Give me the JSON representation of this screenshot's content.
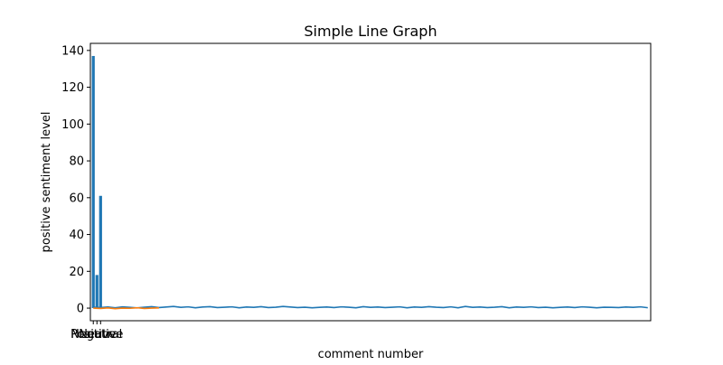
{
  "chart_data": {
    "type": "line",
    "title": "Simple Line Graph",
    "xlabel": "comment number",
    "ylabel": "positive sentiment level",
    "ylim": [
      -6.85,
      143.85
    ],
    "yticks": [
      0,
      20,
      40,
      60,
      80,
      100,
      120,
      140
    ],
    "xticks": [
      {
        "x": 0,
        "label": "Positive"
      },
      {
        "x": 1,
        "label": "Negative"
      },
      {
        "x": 2,
        "label": "Neutral"
      }
    ],
    "xlim": [
      -0.8,
      152.8
    ],
    "grid": false,
    "bars": {
      "name": "",
      "color": "#1f77b4",
      "categories": [
        "Positive",
        "Negative",
        "Neutral"
      ],
      "values": [
        137,
        18,
        61
      ]
    },
    "series": [
      {
        "name": "",
        "color": "#1f77b4",
        "x": [
          0,
          2,
          4,
          6,
          8,
          10,
          12,
          14,
          16,
          18,
          20,
          22,
          24,
          26,
          28,
          30,
          32,
          34,
          36,
          38,
          40,
          42,
          44,
          46,
          48,
          50,
          52,
          54,
          56,
          58,
          60,
          62,
          64,
          66,
          68,
          70,
          72,
          74,
          76,
          78,
          80,
          82,
          84,
          86,
          88,
          90,
          92,
          94,
          96,
          98,
          100,
          102,
          104,
          106,
          108,
          110,
          112,
          114,
          116,
          118,
          120,
          122,
          124,
          126,
          128,
          130,
          132,
          134,
          136,
          138,
          140,
          142,
          144,
          146,
          148,
          150,
          152
        ],
        "y": [
          0.5,
          0.3,
          0.6,
          0.2,
          0.7,
          0.4,
          0.1,
          0.5,
          0.8,
          0.3,
          0.6,
          0.9,
          0.4,
          0.7,
          0.2,
          0.6,
          0.8,
          0.3,
          0.5,
          0.7,
          0.2,
          0.6,
          0.4,
          0.8,
          0.3,
          0.5,
          0.9,
          0.6,
          0.3,
          0.5,
          0.2,
          0.4,
          0.6,
          0.3,
          0.7,
          0.5,
          0.2,
          0.8,
          0.4,
          0.6,
          0.3,
          0.5,
          0.7,
          0.2,
          0.6,
          0.4,
          0.8,
          0.5,
          0.3,
          0.7,
          0.2,
          0.9,
          0.4,
          0.6,
          0.3,
          0.5,
          0.8,
          0.2,
          0.6,
          0.4,
          0.7,
          0.3,
          0.5,
          0.2,
          0.4,
          0.6,
          0.3,
          0.7,
          0.5,
          0.2,
          0.5,
          0.4,
          0.3,
          0.6,
          0.4,
          0.7,
          0.2
        ]
      },
      {
        "name": "",
        "color": "#ff7f0e",
        "x": [
          0,
          2,
          4,
          6,
          8,
          10,
          12,
          14,
          16,
          18
        ],
        "y": [
          0.0,
          -0.2,
          0.1,
          -0.3,
          0.0,
          -0.1,
          0.2,
          -0.2,
          0.0,
          0.1
        ]
      }
    ]
  }
}
